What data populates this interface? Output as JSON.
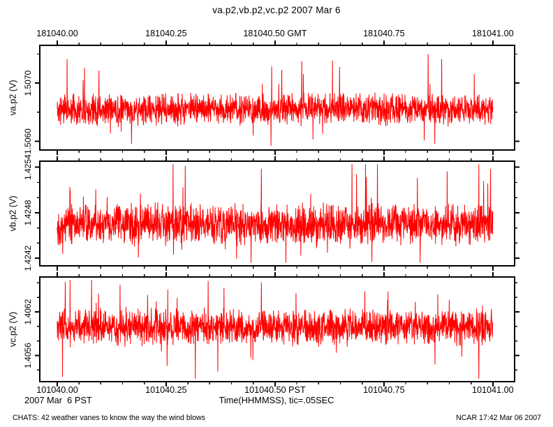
{
  "page": {
    "title": "va.p2,vb.p2,vc.p2 2007 Mar 6",
    "date_left": "2007 Mar  6 PST",
    "x_axis_title": "Time(HHMMSS), tic=.05SEC",
    "footer_left": "CHATS: 42 weather vanes to know the way the wind blows",
    "footer_right": "NCAR 17:42 Mar 06 2007",
    "colors": {
      "trace": "#ff0000",
      "frame": "#000000",
      "background": "#ffffff",
      "text": "#000000"
    }
  },
  "chart_data": {
    "type": "line",
    "title": "va.p2,vb.p2,vc.p2 2007 Mar 6",
    "xlabel": "Time(HHMMSS), tic=.05SEC",
    "grid": false,
    "legend": "none",
    "x_axis": {
      "data_start": 101040.0,
      "data_end": 101041.0,
      "axis_min": 101039.96,
      "axis_max": 101041.05,
      "minor_step": 0.05,
      "major_step": 0.25,
      "top_tick_labels": [
        "181040.00",
        "181040.25",
        "181040.50 GMT",
        "181040.75",
        "181041.00"
      ],
      "bottom_tick_labels": [
        "101040.00",
        "101040.25",
        "101040.50 PST",
        "101040.75",
        "101041.00"
      ]
    },
    "panels": [
      {
        "name": "va.p2",
        "ylabel": "va.p2 (V)",
        "ylim": [
          1.50585,
          1.50765
        ],
        "major_ticks": [
          {
            "value": 1.507,
            "label": "1.5070"
          },
          {
            "value": 1.506,
            "label": "1.5060"
          }
        ],
        "minor_ticks": [
          1.5075,
          1.5065
        ],
        "series": {
          "description": "dense random noise trace",
          "mean": 1.50655,
          "base_amp": 0.0003,
          "spike_prob": 0.032,
          "spike_up": 0.00085,
          "spike_down": 0.0005,
          "observed_max": 1.50758,
          "observed_min": 1.50592,
          "points": 1900,
          "seed": 11
        }
      },
      {
        "name": "vb.p2",
        "ylabel": "vb.p2 (V)",
        "ylim": [
          1.4241,
          1.42548
        ],
        "major_ticks": [
          {
            "value": 1.4254,
            "label": "1.4254"
          },
          {
            "value": 1.4248,
            "label": "1.4248"
          },
          {
            "value": 1.4242,
            "label": "1.4242"
          }
        ],
        "minor_ticks": [
          1.4252,
          1.425,
          1.4246,
          1.4244
        ],
        "series": {
          "description": "dense random noise trace",
          "mean": 1.42465,
          "base_amp": 0.0003,
          "spike_prob": 0.032,
          "spike_up": 0.0008,
          "spike_down": 0.0005,
          "observed_max": 1.42541,
          "observed_min": 1.42418,
          "points": 1900,
          "seed": 22
        }
      },
      {
        "name": "vc.p2",
        "ylabel": "vc.p2 (V)",
        "ylim": [
          1.40524,
          1.40668
        ],
        "major_ticks": [
          {
            "value": 1.4062,
            "label": "1.4062"
          },
          {
            "value": 1.4056,
            "label": "1.4056"
          }
        ],
        "minor_ticks": [
          1.4066,
          1.4064,
          1.406,
          1.4058,
          1.4054
        ],
        "series": {
          "description": "dense random noise trace",
          "mean": 1.40599,
          "base_amp": 0.00028,
          "spike_prob": 0.032,
          "spike_up": 0.00055,
          "spike_down": 0.00063,
          "observed_max": 1.40649,
          "observed_min": 1.40538,
          "points": 1900,
          "seed": 33
        }
      }
    ]
  }
}
